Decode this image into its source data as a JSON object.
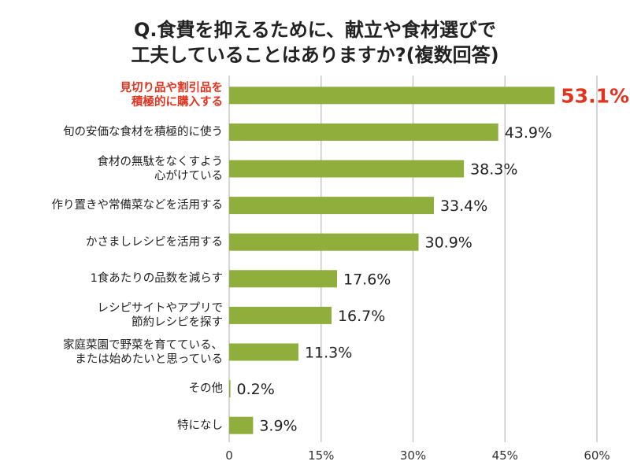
{
  "chart_data": {
    "type": "bar",
    "orientation": "horizontal",
    "title": "Q.食費を抑えるために、献立や食材選びで\n工夫していることはありますか?(複数回答)",
    "categories": [
      "見切り品や割引品を\n積極的に購入する",
      "旬の安価な食材を積極的に使う",
      "食材の無駄をなくすよう\n心がけている",
      "作り置きや常備菜などを活用する",
      "かさましレシピを活用する",
      "1食あたりの品数を減らす",
      "レシピサイトやアプリで\n節約レシピを探す",
      "家庭菜園で野菜を育てている、\nまたは始めたいと思っている",
      "その他",
      "特になし"
    ],
    "values": [
      53.1,
      43.9,
      38.3,
      33.4,
      30.9,
      17.6,
      16.7,
      11.3,
      0.2,
      3.9
    ],
    "value_labels": [
      "53.1%",
      "43.9%",
      "38.3%",
      "33.4%",
      "30.9%",
      "17.6%",
      "16.7%",
      "11.3%",
      "0.2%",
      "3.9%"
    ],
    "color": "#8fae3b",
    "highlight": {
      "index": 0,
      "color": "#e5321d"
    },
    "xlim": [
      0,
      60
    ],
    "xticks": [
      0,
      {
        "value": 15,
        "label": "15%"
      },
      {
        "value": 30,
        "label": "30%"
      },
      {
        "value": 45,
        "label": "45%"
      },
      {
        "value": 60,
        "label": "60%"
      }
    ],
    "grid": true
  }
}
